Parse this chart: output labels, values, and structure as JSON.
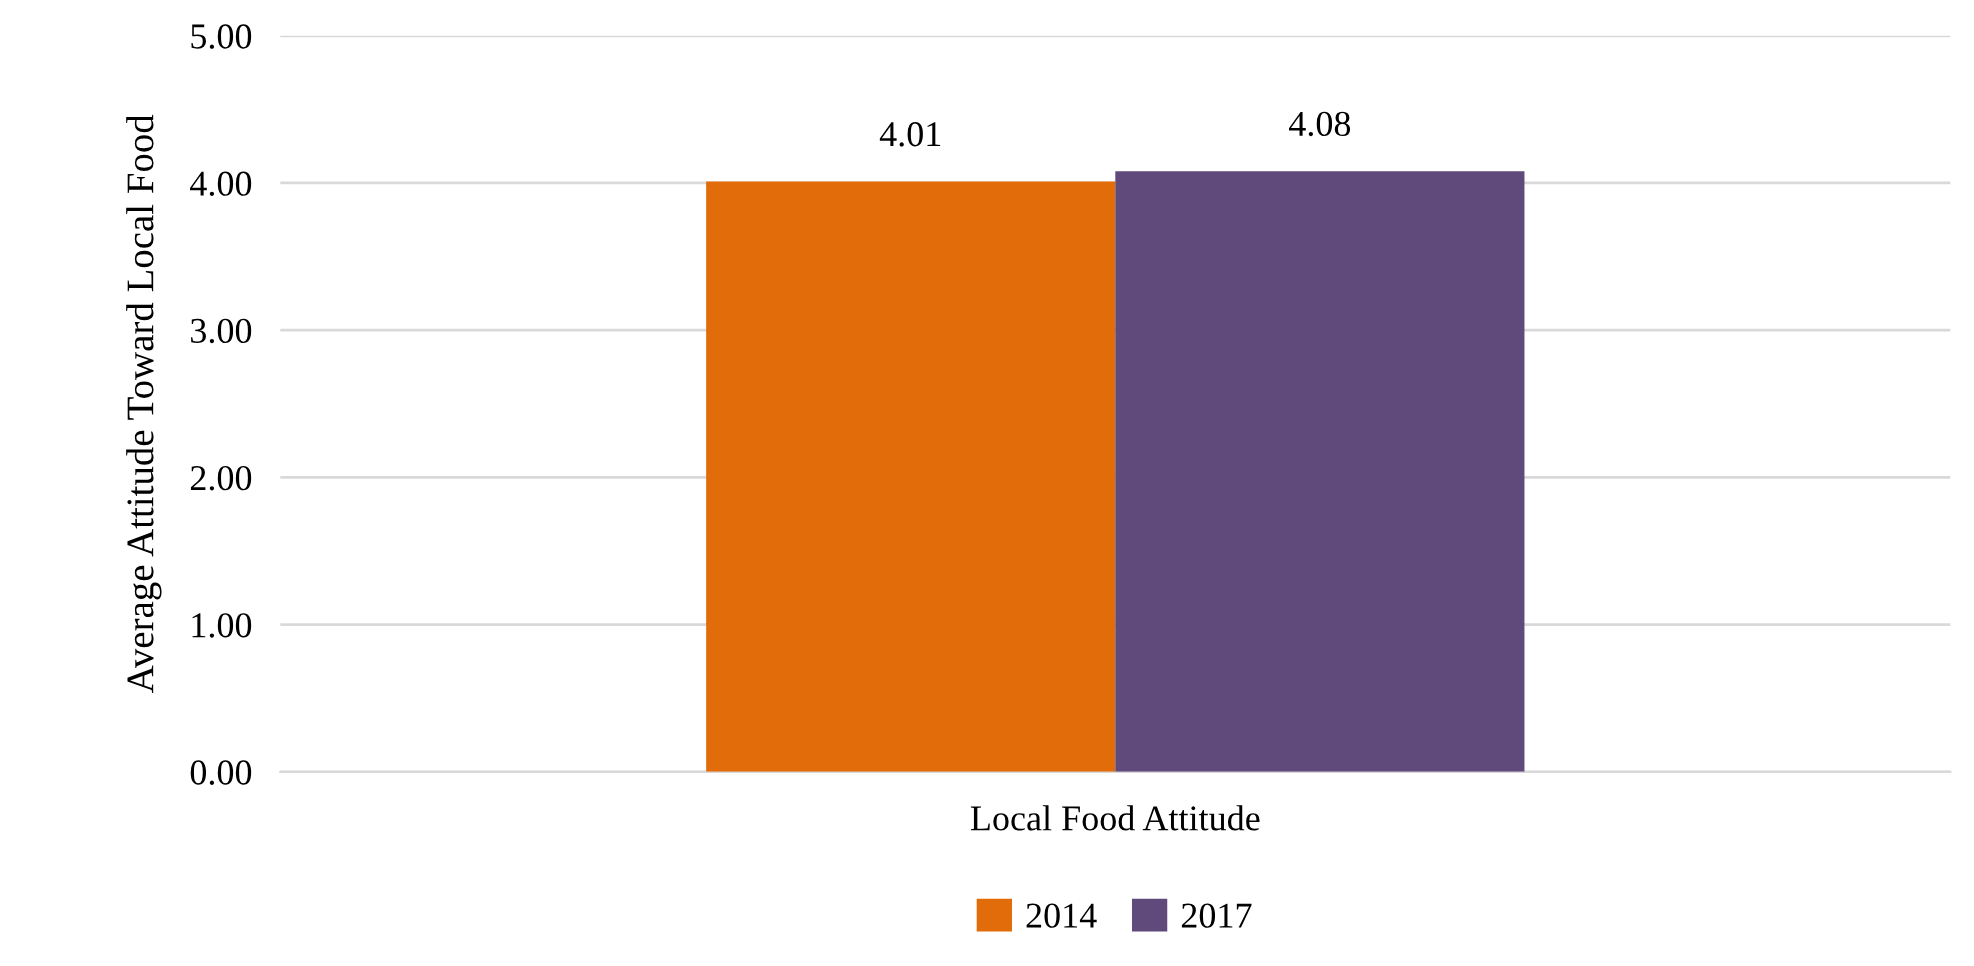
{
  "chart_data": {
    "type": "bar",
    "categories": [
      "Local Food Attitude"
    ],
    "series": [
      {
        "name": "2014",
        "color": "#e36c0a",
        "values": [
          4.01
        ]
      },
      {
        "name": "2017",
        "color": "#604a7b",
        "values": [
          4.08
        ]
      }
    ],
    "ylabel": "Average Attitude Toward Local Food",
    "ylim": [
      0,
      5
    ],
    "yticks": [
      {
        "value": 0,
        "label": "0.00"
      },
      {
        "value": 1,
        "label": "1.00"
      },
      {
        "value": 2,
        "label": "2.00"
      },
      {
        "value": 3,
        "label": "3.00"
      },
      {
        "value": 4,
        "label": "4.00"
      },
      {
        "value": 5,
        "label": "5.00"
      }
    ],
    "grid": "y",
    "legend": "bottom",
    "data_labels": true
  }
}
